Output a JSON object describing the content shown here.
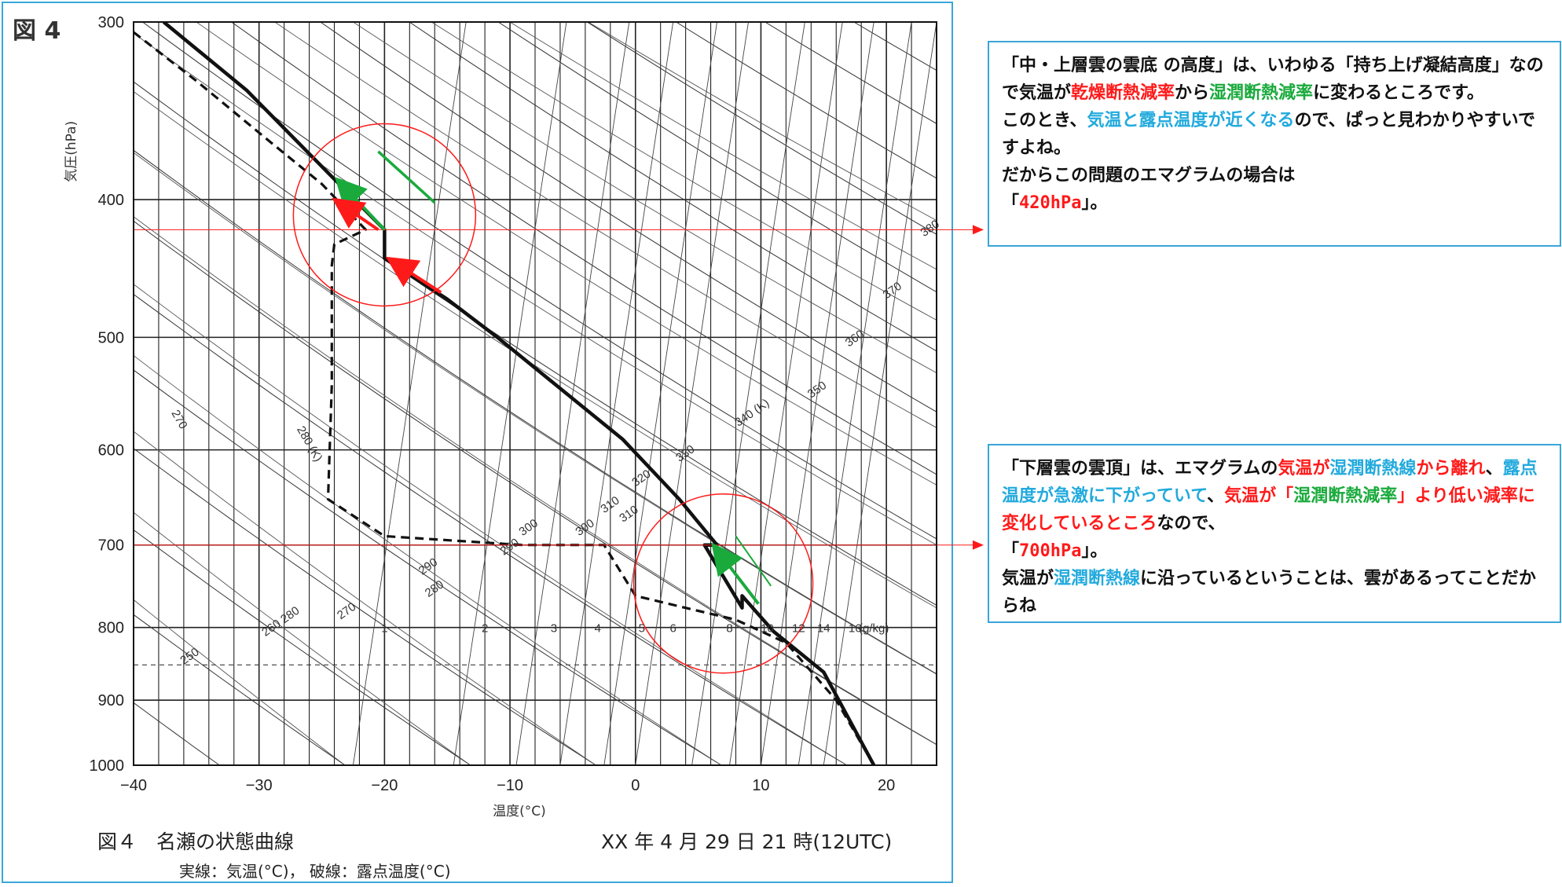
{
  "figure_tag": "図 4",
  "caption": {
    "title": "図４　名瀬の状態曲線",
    "datetime": "XX 年 4 月 29 日 21 時(12UTC)",
    "legend": "実線：気温(°C)，  破線：露点温度(°C)"
  },
  "note1": {
    "segments": [
      {
        "text": "「中・上層雲の雲底 の高度」は、いわゆる「持ち上げ凝結高度」なので気温が",
        "style": ""
      },
      {
        "text": "乾燥断熱減率",
        "style": "red"
      },
      {
        "text": "から",
        "style": ""
      },
      {
        "text": "湿潤断熱減率",
        "style": "green"
      },
      {
        "text": "に変わるところです。",
        "style": ""
      },
      {
        "text": "\n",
        "style": ""
      },
      {
        "text": "このとき、",
        "style": ""
      },
      {
        "text": "気温と露点温度が近くなる",
        "style": "cyan"
      },
      {
        "text": "ので、ぱっと見わかりやすいですよね。",
        "style": ""
      },
      {
        "text": "\n",
        "style": ""
      },
      {
        "text": "だからこの問題のエマグラムの場合は",
        "style": ""
      },
      {
        "text": "\n",
        "style": ""
      },
      {
        "text": "「",
        "style": ""
      },
      {
        "text": "420hPa",
        "style": "red mono"
      },
      {
        "text": "」。",
        "style": ""
      }
    ]
  },
  "note2": {
    "segments": [
      {
        "text": "「下層雲の雲頂」は、エマグラムの",
        "style": ""
      },
      {
        "text": "気温が",
        "style": "red"
      },
      {
        "text": "湿潤断熱線",
        "style": "cyan"
      },
      {
        "text": "から離れ",
        "style": "red"
      },
      {
        "text": "、",
        "style": ""
      },
      {
        "text": "露点温度が急激に下がっていて",
        "style": "cyan"
      },
      {
        "text": "、",
        "style": ""
      },
      {
        "text": "気温が「",
        "style": "red"
      },
      {
        "text": "湿潤断熱減率",
        "style": "green"
      },
      {
        "text": "」より低い減率に変化しているところ",
        "style": "red"
      },
      {
        "text": "なので、",
        "style": ""
      },
      {
        "text": "\n",
        "style": ""
      },
      {
        "text": "「",
        "style": ""
      },
      {
        "text": "700hPa",
        "style": "red mono"
      },
      {
        "text": "」。",
        "style": ""
      },
      {
        "text": "\n",
        "style": ""
      },
      {
        "text": "気温が",
        "style": ""
      },
      {
        "text": "湿潤断熱線",
        "style": "cyan"
      },
      {
        "text": "に沿っているということは、雲があるってことだからね",
        "style": ""
      }
    ]
  },
  "colors": {
    "frame": "#3aa6d9",
    "red": "#ff1a1a",
    "green": "#1aaa3c",
    "cyan": "#22aadd"
  },
  "chart_data": {
    "type": "line",
    "title": "",
    "xlabel": "温度(°C)",
    "ylabel": "気圧(hPa)",
    "x_ticks": [
      -40,
      -30,
      -20,
      -10,
      0,
      10,
      20
    ],
    "y_ticks": [
      300,
      400,
      500,
      600,
      700,
      800,
      900,
      1000
    ],
    "xlim": [
      -40,
      24
    ],
    "ylim": [
      1000,
      300
    ],
    "y_scale": "log",
    "series": [
      {
        "name": "実線：気温(°C)",
        "style": "solid",
        "points": [
          [
            -37.6,
            300
          ],
          [
            -31,
            335
          ],
          [
            -24,
            387
          ],
          [
            -20,
            420
          ],
          [
            -20,
            440
          ],
          [
            -15,
            470
          ],
          [
            -11,
            500
          ],
          [
            -1,
            590
          ],
          [
            3.5,
            650
          ],
          [
            6.5,
            700
          ],
          [
            5.5,
            700
          ],
          [
            8.5,
            775
          ],
          [
            8.5,
            760
          ],
          [
            11,
            805
          ],
          [
            15,
            860
          ],
          [
            19,
            1000
          ]
        ]
      },
      {
        "name": "破線：露点温度(°C)",
        "style": "dashed",
        "points": [
          [
            -40,
            305
          ],
          [
            -35,
            330
          ],
          [
            -29,
            365
          ],
          [
            -25,
            390
          ],
          [
            -21.5,
            420
          ],
          [
            -24,
            430
          ],
          [
            -24.2,
            445
          ],
          [
            -24.2,
            540
          ],
          [
            -24.5,
            650
          ],
          [
            -20,
            690
          ],
          [
            -9,
            700
          ],
          [
            -2.5,
            700
          ],
          [
            0,
            760
          ],
          [
            4,
            775
          ],
          [
            8,
            790
          ],
          [
            12,
            820
          ],
          [
            16,
            900
          ],
          [
            19,
            1000
          ]
        ]
      }
    ],
    "isotherm_labels": [
      "270",
      "280",
      "290",
      "300",
      "310",
      "320",
      "330",
      "340 (K)",
      "350",
      "360",
      "370",
      "380"
    ],
    "isotherm_dry_labels": [
      "250",
      "260",
      "270",
      "280",
      "290",
      "300",
      "310",
      "280 (K)"
    ],
    "mixing_ratio_labels": [
      "1",
      "2",
      "3",
      "4",
      "5",
      "6",
      "8",
      "10",
      "12",
      "14",
      "16",
      "(g/kg)"
    ],
    "annotations": [
      {
        "type": "circle",
        "center_temp": -20,
        "center_p": 410
      },
      {
        "type": "circle",
        "center_temp": 7,
        "center_p": 745
      },
      {
        "type": "hline",
        "p": 420,
        "color": "red"
      },
      {
        "type": "hline",
        "p": 700,
        "color": "red"
      }
    ]
  }
}
